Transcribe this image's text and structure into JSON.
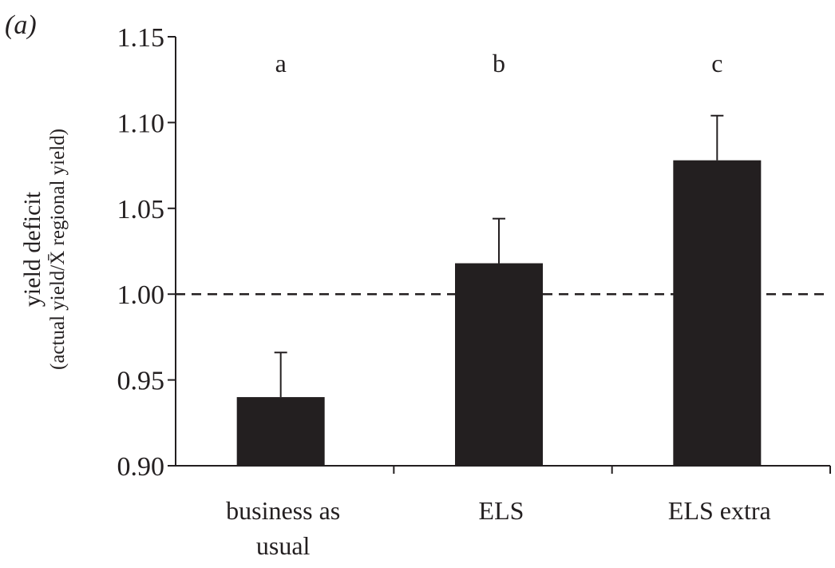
{
  "chart_data": {
    "type": "bar",
    "panel_label": "(a)",
    "categories": [
      "business as usual",
      "ELS",
      "ELS extra"
    ],
    "category_label_lines": [
      [
        "business as",
        "usual"
      ],
      [
        "ELS"
      ],
      [
        "ELS extra"
      ]
    ],
    "values": [
      0.94,
      1.018,
      1.078
    ],
    "error_upper": [
      0.966,
      1.044,
      1.104
    ],
    "significance_letters": [
      "a",
      "b",
      "c"
    ],
    "ylabel": "yield deficit",
    "ylabel_sub": "(actual yield/X̄ regional yield)",
    "ylim": [
      0.9,
      1.15
    ],
    "yticks": [
      0.9,
      0.95,
      1.0,
      1.05,
      1.1,
      1.15
    ],
    "ytick_labels": [
      "0.90",
      "0.95",
      "1.00",
      "1.05",
      "1.10",
      "1.15"
    ],
    "reference_line": 1.0,
    "grid": false,
    "bar_color": "#231f20"
  }
}
